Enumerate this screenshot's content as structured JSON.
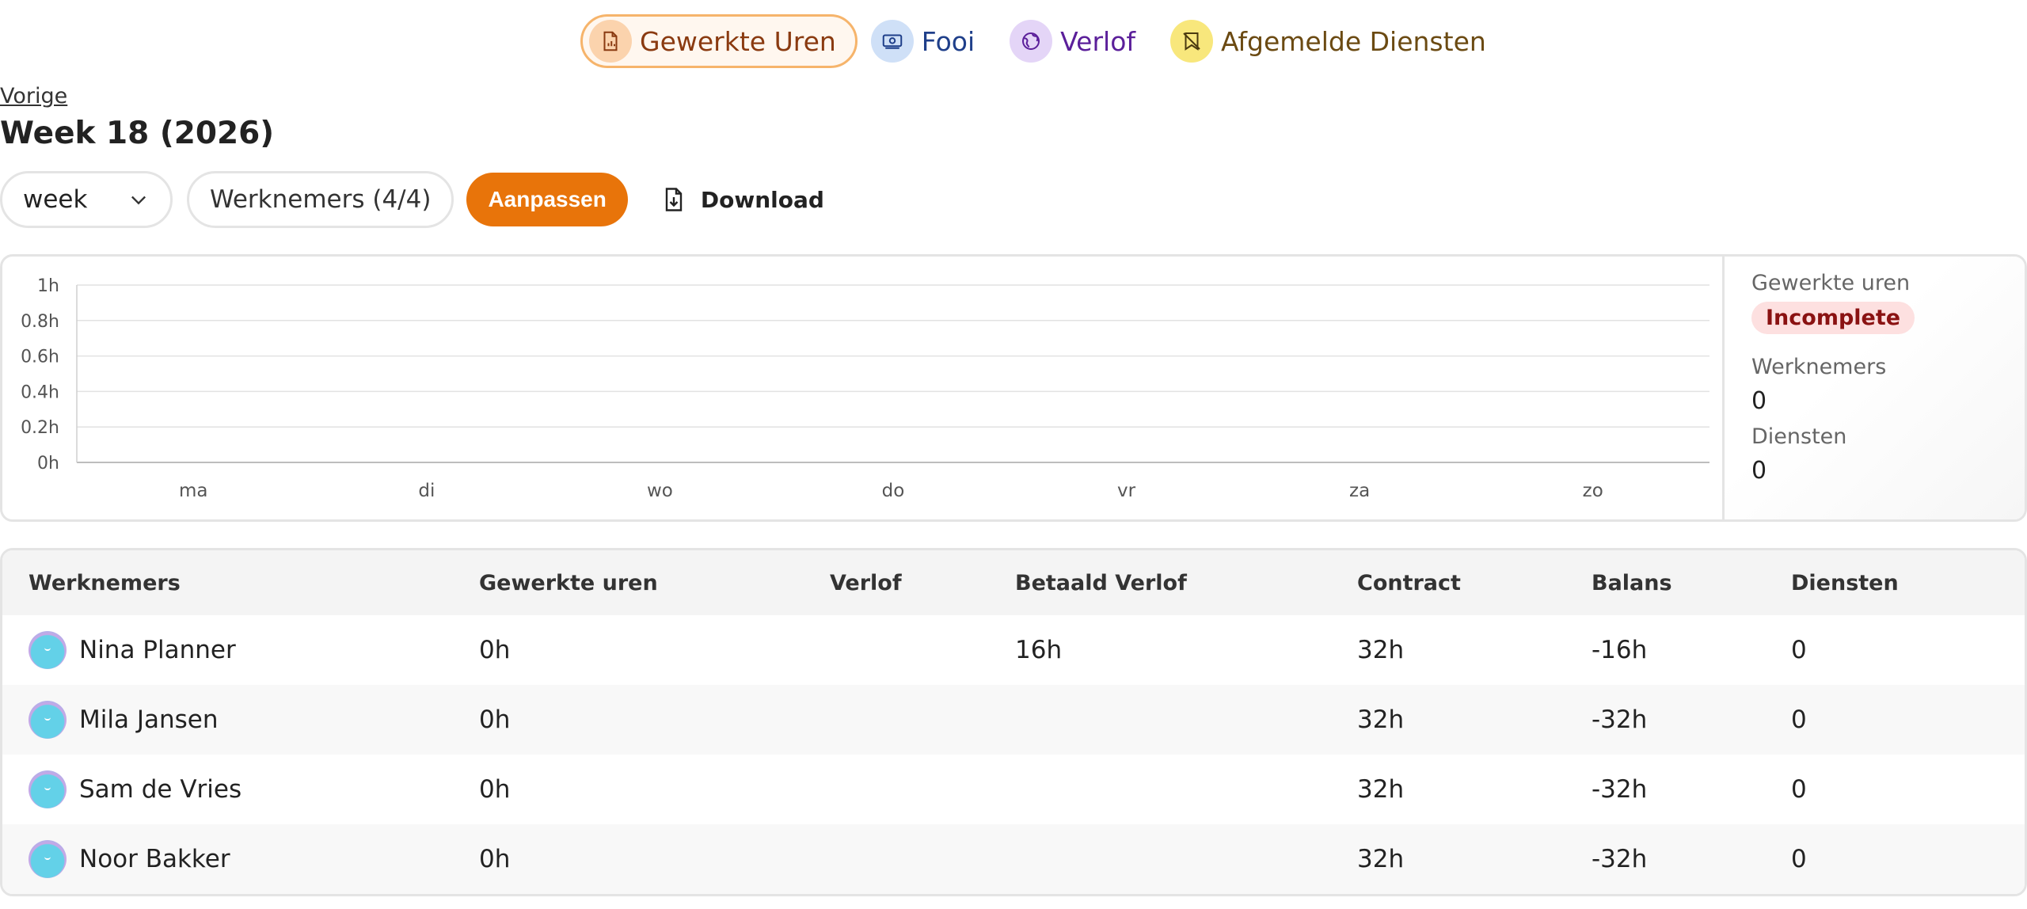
{
  "tabs": [
    {
      "label": "Gewerkte Uren",
      "icon": "report-icon",
      "color": "#b4531a",
      "bg": "#fbd3ad",
      "active": true
    },
    {
      "label": "Fooi",
      "icon": "money-icon",
      "color": "#1f3f8a",
      "bg": "#cfe0f7",
      "active": false
    },
    {
      "label": "Verlof",
      "icon": "globe-icon",
      "color": "#5b1f9a",
      "bg": "#e4d5f7",
      "active": false
    },
    {
      "label": "Afgemelde Diensten",
      "icon": "cancelled-shift-icon",
      "color": "#6b4a12",
      "bg": "#f8e77c",
      "active": false
    }
  ],
  "header": {
    "prev_label": "Vorige",
    "title": "Week 18 (2026)"
  },
  "toolbar": {
    "period_value": "week",
    "employees_label": "Werknemers (4/4)",
    "adjust_label": "Aanpassen",
    "download_label": "Download"
  },
  "chart_data": {
    "type": "bar",
    "categories": [
      "ma",
      "di",
      "wo",
      "do",
      "vr",
      "za",
      "zo"
    ],
    "values": [
      0,
      0,
      0,
      0,
      0,
      0,
      0
    ],
    "y_ticks": [
      "0h",
      "0.2h",
      "0.4h",
      "0.6h",
      "0.8h",
      "1h"
    ],
    "ylim": [
      0,
      1
    ],
    "grid": true
  },
  "stats": {
    "hours_label": "Gewerkte uren",
    "hours_status": "Incomplete",
    "employees_label": "Werknemers",
    "employees_value": "0",
    "shifts_label": "Diensten",
    "shifts_value": "0"
  },
  "table": {
    "columns": [
      "Werknemers",
      "Gewerkte uren",
      "Verlof",
      "Betaald Verlof",
      "Contract",
      "Balans",
      "Diensten"
    ],
    "rows": [
      {
        "name": "Nina Planner",
        "hours": "0h",
        "leave": "",
        "paid_leave": "16h",
        "contract": "32h",
        "balance": "-16h",
        "shifts": "0"
      },
      {
        "name": "Mila Jansen",
        "hours": "0h",
        "leave": "",
        "paid_leave": "",
        "contract": "32h",
        "balance": "-32h",
        "shifts": "0"
      },
      {
        "name": "Sam de Vries",
        "hours": "0h",
        "leave": "",
        "paid_leave": "",
        "contract": "32h",
        "balance": "-32h",
        "shifts": "0"
      },
      {
        "name": "Noor Bakker",
        "hours": "0h",
        "leave": "",
        "paid_leave": "",
        "contract": "32h",
        "balance": "-32h",
        "shifts": "0"
      }
    ]
  }
}
